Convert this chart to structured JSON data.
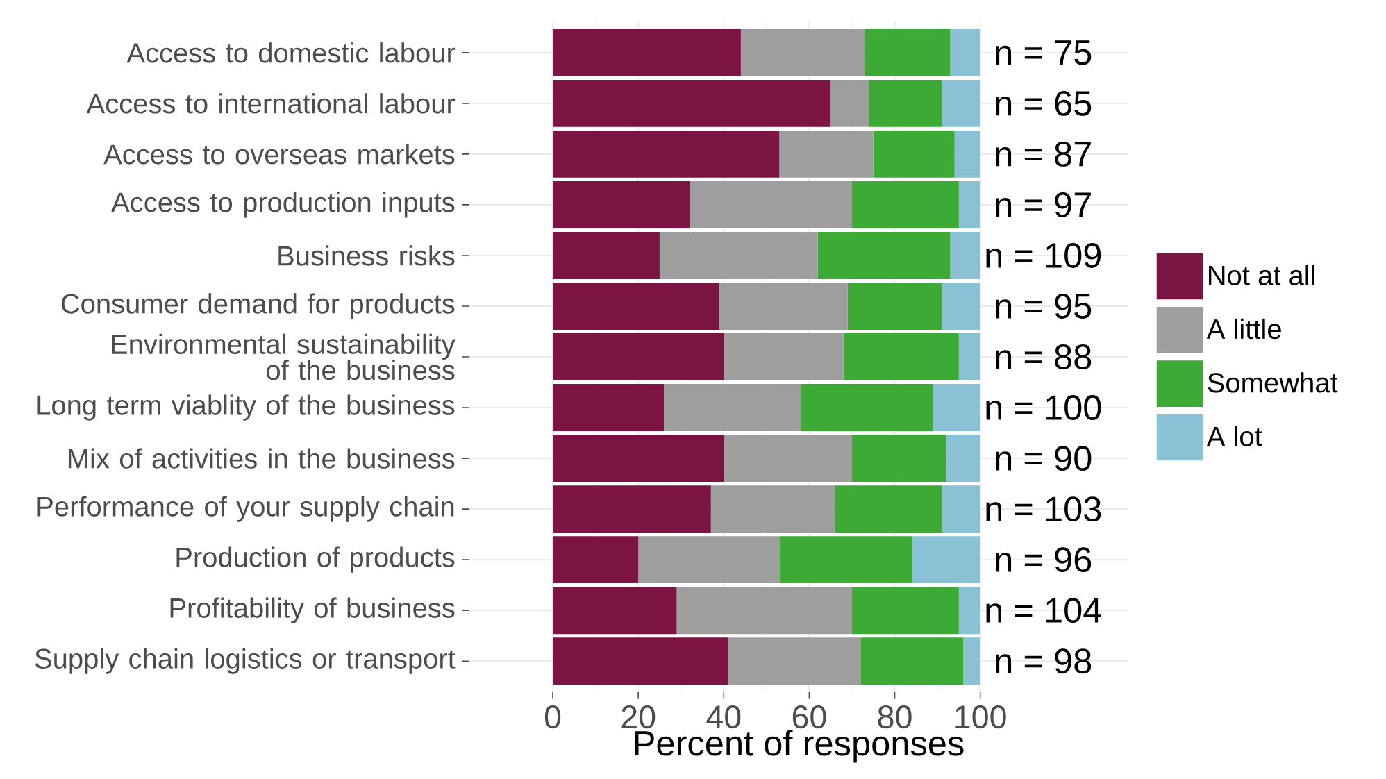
{
  "chart_data": {
    "type": "bar",
    "orientation": "horizontal",
    "stacked": true,
    "categories": [
      "Access to domestic labour",
      "Access to international labour",
      "Access to overseas markets",
      "Access to production inputs",
      "Business risks",
      "Consumer demand for products",
      "Environmental sustainability of the business",
      "Long term viablity of the business",
      "Mix of activities in the business",
      "Performance of your supply chain",
      "Production of products",
      "Profitability of business",
      "Supply chain logistics or transport"
    ],
    "series": [
      {
        "name": "Not at all",
        "color": "#7b1343",
        "values": [
          44,
          65,
          53,
          32,
          25,
          39,
          40,
          26,
          40,
          37,
          20,
          29,
          41
        ]
      },
      {
        "name": "A little",
        "color": "#9e9e9e",
        "values": [
          29,
          9,
          22,
          38,
          37,
          30,
          28,
          32,
          30,
          29,
          33,
          41,
          31
        ]
      },
      {
        "name": "Somewhat",
        "color": "#3caa35",
        "values": [
          20,
          17,
          19,
          25,
          31,
          22,
          27,
          31,
          22,
          25,
          31,
          25,
          24
        ]
      },
      {
        "name": "A lot",
        "color": "#8ac1d4",
        "values": [
          7,
          9,
          6,
          5,
          7,
          9,
          5,
          11,
          8,
          9,
          16,
          5,
          4
        ]
      }
    ],
    "xlabel": "Percent of responses",
    "xlim": [
      -19.5,
      134.5
    ],
    "xticks": [
      0,
      20,
      40,
      60,
      80,
      100
    ],
    "grid": true,
    "legend": "right",
    "annotations": [
      "n = 75",
      "n = 65",
      "n = 87",
      "n = 97",
      "n = 109",
      "n = 95",
      "n = 88",
      "n = 100",
      "n = 90",
      "n = 103",
      "n = 96",
      "n = 104",
      "n = 98"
    ]
  }
}
